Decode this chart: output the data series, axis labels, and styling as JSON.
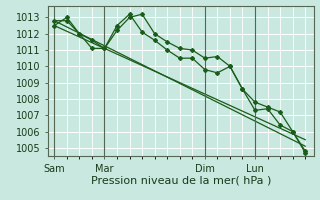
{
  "bg_color": "#c8e8e0",
  "plot_bg_color": "#c8e8e0",
  "grid_color": "#ffffff",
  "line_color": "#1a5c1a",
  "marker_color": "#1a5c1a",
  "xlabel": "Pression niveau de la mer( hPa )",
  "xlabel_fontsize": 8,
  "ylim": [
    1004.5,
    1013.7
  ],
  "yticks": [
    1005,
    1006,
    1007,
    1008,
    1009,
    1010,
    1011,
    1012,
    1013
  ],
  "xtick_labels": [
    "Sam",
    "Mar",
    "Dim",
    "Lun"
  ],
  "xtick_pos": [
    0,
    24,
    72,
    96
  ],
  "vline_pos": [
    0,
    24,
    72,
    96
  ],
  "xlim": [
    -3,
    124
  ],
  "series1_x": [
    0,
    6,
    12,
    18,
    24,
    30,
    36,
    42,
    48,
    54,
    60,
    66,
    72,
    78,
    84,
    90,
    96,
    102,
    108,
    114,
    120
  ],
  "series1_y": [
    1012.8,
    1012.8,
    1012.0,
    1011.1,
    1011.1,
    1012.2,
    1013.0,
    1013.2,
    1012.0,
    1011.5,
    1011.1,
    1011.0,
    1010.5,
    1010.6,
    1010.0,
    1008.6,
    1007.8,
    1007.5,
    1007.2,
    1006.0,
    1004.8
  ],
  "series2_x": [
    0,
    6,
    12,
    18,
    24,
    30,
    36,
    42,
    48,
    54,
    60,
    66,
    72,
    78,
    84,
    90,
    96,
    102,
    108,
    114,
    120
  ],
  "series2_y": [
    1012.5,
    1013.0,
    1012.0,
    1011.6,
    1011.1,
    1012.5,
    1013.2,
    1012.1,
    1011.6,
    1011.0,
    1010.5,
    1010.5,
    1009.8,
    1009.6,
    1010.0,
    1008.6,
    1007.3,
    1007.4,
    1006.4,
    1006.0,
    1004.7
  ],
  "trend1_x": [
    0,
    120
  ],
  "trend1_y": [
    1012.8,
    1005.1
  ],
  "trend2_x": [
    0,
    120
  ],
  "trend2_y": [
    1012.5,
    1005.5
  ],
  "spine_color": "#556655"
}
